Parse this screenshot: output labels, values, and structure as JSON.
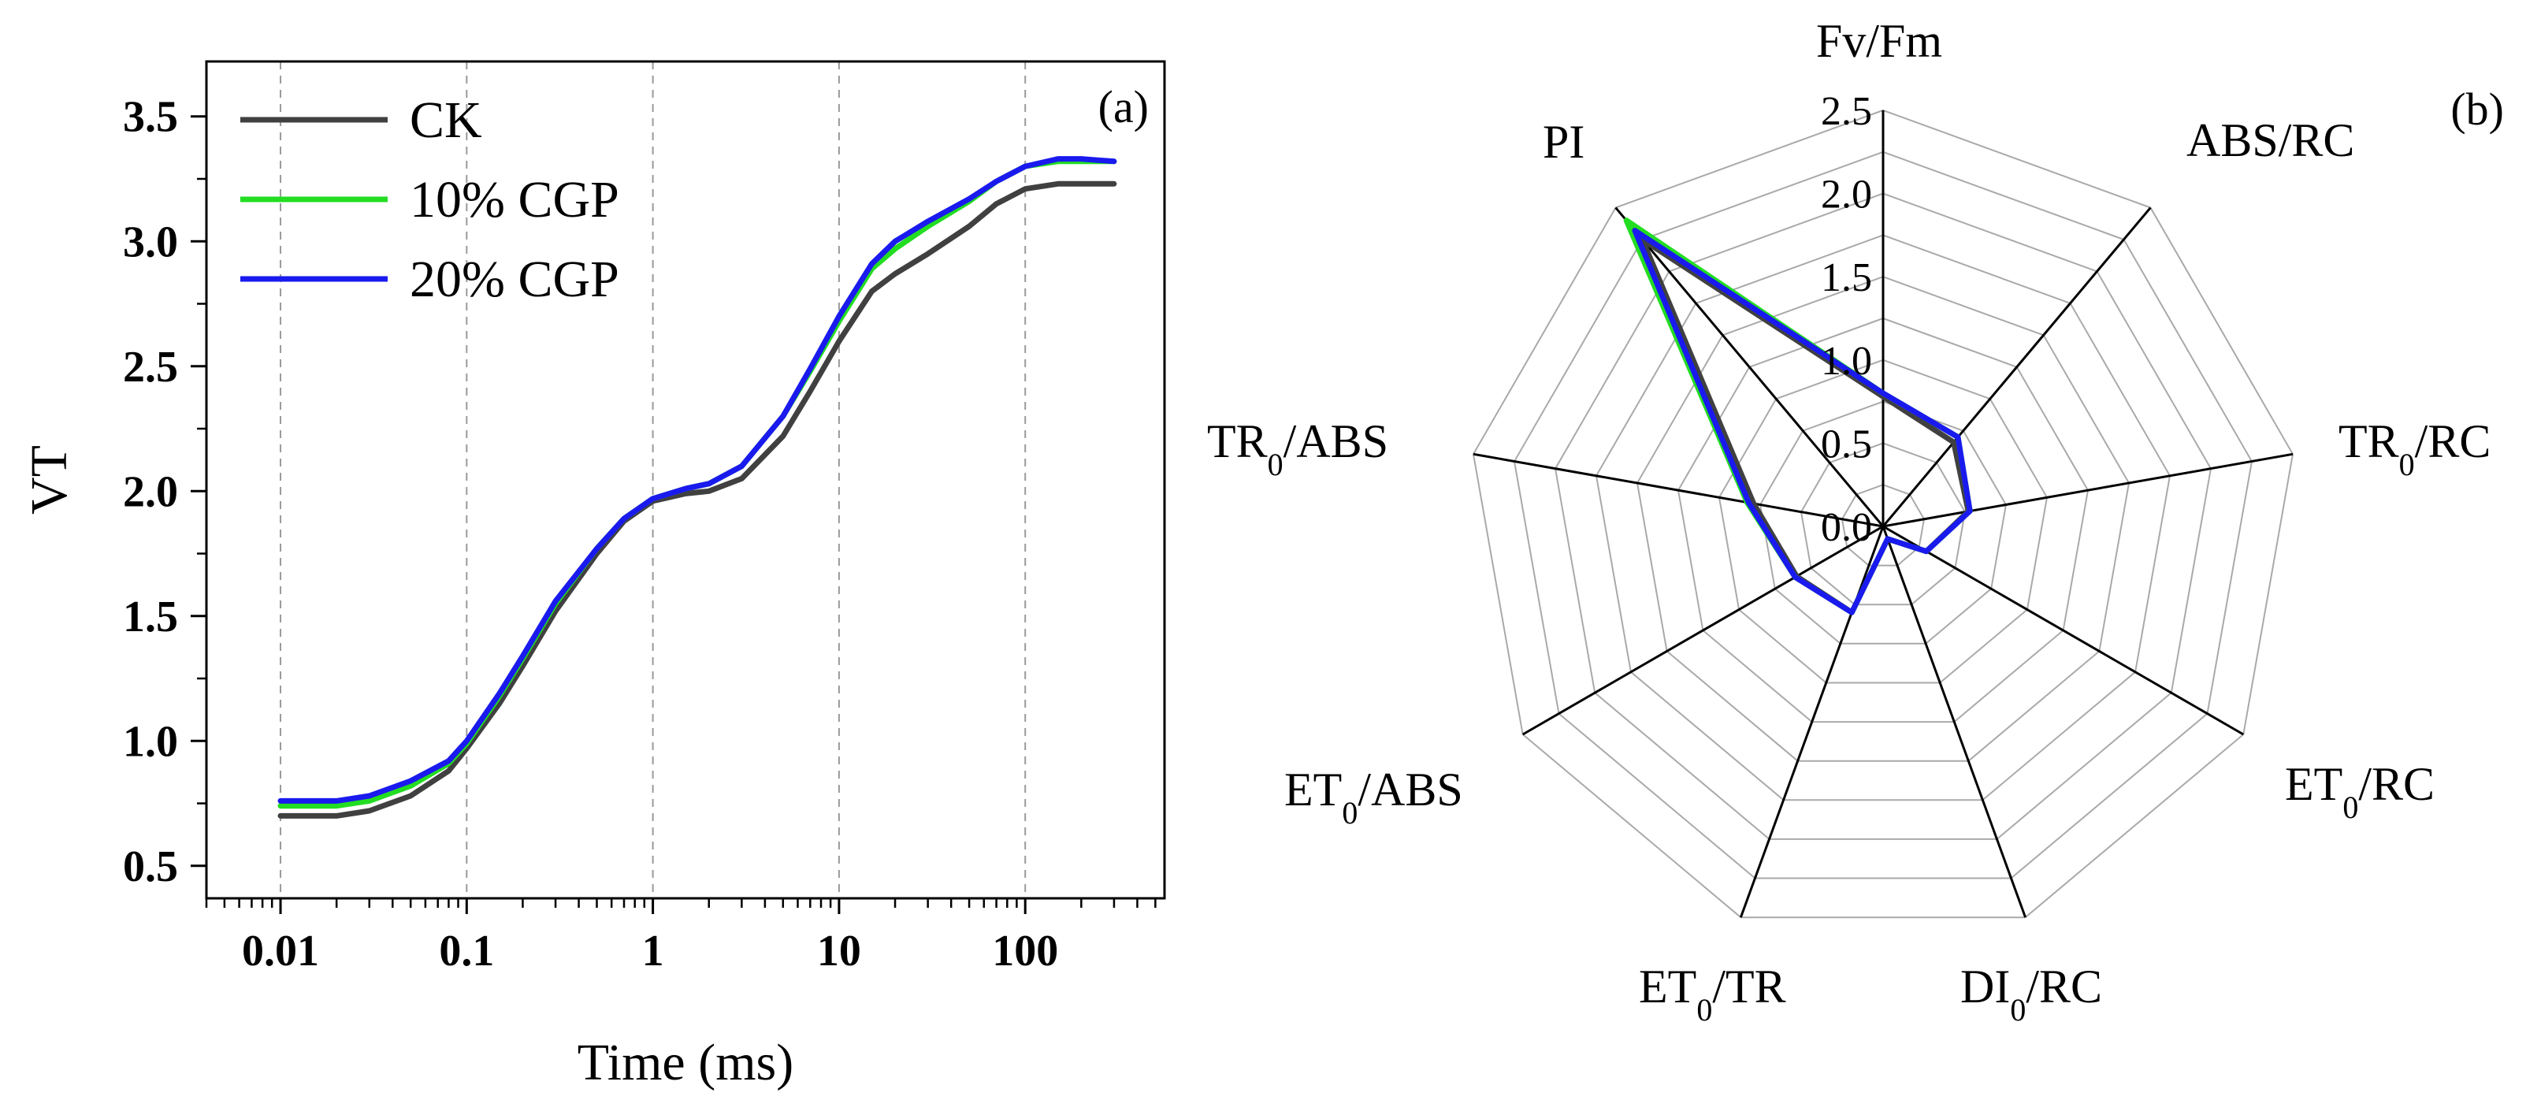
{
  "chart_data": [
    {
      "type": "line",
      "panel_label": "(a)",
      "xlabel": "Time (ms)",
      "ylabel": "VT",
      "xscale": "log",
      "xlim": [
        0.004,
        560
      ],
      "ylim": [
        0.37,
        3.72
      ],
      "x_ticks": [
        0.01,
        0.1,
        1,
        10,
        100
      ],
      "x_tick_labels": [
        "0.01",
        "0.1",
        "1",
        "10",
        "100"
      ],
      "y_ticks": [
        0.5,
        1.0,
        1.5,
        2.0,
        2.5,
        3.0,
        3.5
      ],
      "y_tick_labels": [
        "0.5",
        "1.0",
        "1.5",
        "2.0",
        "2.5",
        "3.0",
        "3.5"
      ],
      "grid": "vertical dashed at decades",
      "legend": "top-left",
      "series": [
        {
          "name": "CK",
          "color": "#404040",
          "x": [
            0.01,
            0.02,
            0.03,
            0.05,
            0.08,
            0.1,
            0.15,
            0.2,
            0.3,
            0.5,
            0.7,
            1,
            1.5,
            2,
            3,
            5,
            7,
            10,
            15,
            20,
            30,
            50,
            70,
            100,
            150,
            200,
            300
          ],
          "y": [
            0.7,
            0.7,
            0.72,
            0.78,
            0.88,
            0.97,
            1.15,
            1.3,
            1.52,
            1.75,
            1.88,
            1.96,
            1.99,
            2.0,
            2.05,
            2.22,
            2.4,
            2.6,
            2.8,
            2.87,
            2.95,
            3.06,
            3.15,
            3.21,
            3.23,
            3.23,
            3.23
          ]
        },
        {
          "name": "10% CGP",
          "color": "#22dd22",
          "x": [
            0.01,
            0.02,
            0.03,
            0.05,
            0.08,
            0.1,
            0.15,
            0.2,
            0.3,
            0.5,
            0.7,
            1,
            1.5,
            2,
            3,
            5,
            7,
            10,
            15,
            20,
            30,
            50,
            70,
            100,
            150,
            200,
            300
          ],
          "y": [
            0.74,
            0.74,
            0.76,
            0.82,
            0.91,
            0.99,
            1.18,
            1.33,
            1.55,
            1.77,
            1.89,
            1.97,
            2.01,
            2.03,
            2.1,
            2.3,
            2.48,
            2.68,
            2.89,
            2.97,
            3.06,
            3.16,
            3.24,
            3.3,
            3.32,
            3.32,
            3.32
          ]
        },
        {
          "name": "20% CGP",
          "color": "#1a1aee",
          "x": [
            0.01,
            0.02,
            0.03,
            0.05,
            0.08,
            0.1,
            0.15,
            0.2,
            0.3,
            0.5,
            0.7,
            1,
            1.5,
            2,
            3,
            5,
            7,
            10,
            15,
            20,
            30,
            50,
            70,
            100,
            150,
            200,
            300
          ],
          "y": [
            0.76,
            0.76,
            0.78,
            0.84,
            0.92,
            1.0,
            1.19,
            1.34,
            1.56,
            1.77,
            1.89,
            1.97,
            2.01,
            2.03,
            2.1,
            2.3,
            2.49,
            2.7,
            2.91,
            3.0,
            3.08,
            3.17,
            3.24,
            3.3,
            3.33,
            3.33,
            3.32
          ]
        }
      ]
    },
    {
      "type": "radar",
      "panel_label": "(b)",
      "r_range": [
        0,
        2.5
      ],
      "r_ticks": [
        0.0,
        0.5,
        1.0,
        1.5,
        2.0,
        2.5
      ],
      "r_tick_labels": [
        "0.0",
        "0.5",
        "1.0",
        "1.5",
        "2.0",
        "2.5"
      ],
      "axes": [
        {
          "main": "Fv/Fm",
          "sub": "",
          "rest": ""
        },
        {
          "main": "ABS/RC",
          "sub": "",
          "rest": ""
        },
        {
          "main": "TR",
          "sub": "0",
          "rest": "/RC"
        },
        {
          "main": "ET",
          "sub": "0",
          "rest": "/RC"
        },
        {
          "main": "DI",
          "sub": "0",
          "rest": "/RC"
        },
        {
          "main": "ET",
          "sub": "0",
          "rest": "/TR"
        },
        {
          "main": "ET",
          "sub": "0",
          "rest": "/ABS"
        },
        {
          "main": "TR",
          "sub": "0",
          "rest": "/ABS"
        },
        {
          "main": "PI",
          "sub": "",
          "rest": ""
        }
      ],
      "series": [
        {
          "name": "CK",
          "color": "#404040",
          "values": [
            0.78,
            0.66,
            0.52,
            0.3,
            0.08,
            0.55,
            0.6,
            0.79,
            2.25
          ]
        },
        {
          "name": "10% CGP",
          "color": "#22dd22",
          "values": [
            0.8,
            0.7,
            0.53,
            0.3,
            0.08,
            0.55,
            0.61,
            0.83,
            2.4
          ]
        },
        {
          "name": "20% CGP",
          "color": "#1a1aee",
          "values": [
            0.8,
            0.7,
            0.53,
            0.3,
            0.08,
            0.55,
            0.61,
            0.82,
            2.32
          ]
        }
      ]
    }
  ]
}
